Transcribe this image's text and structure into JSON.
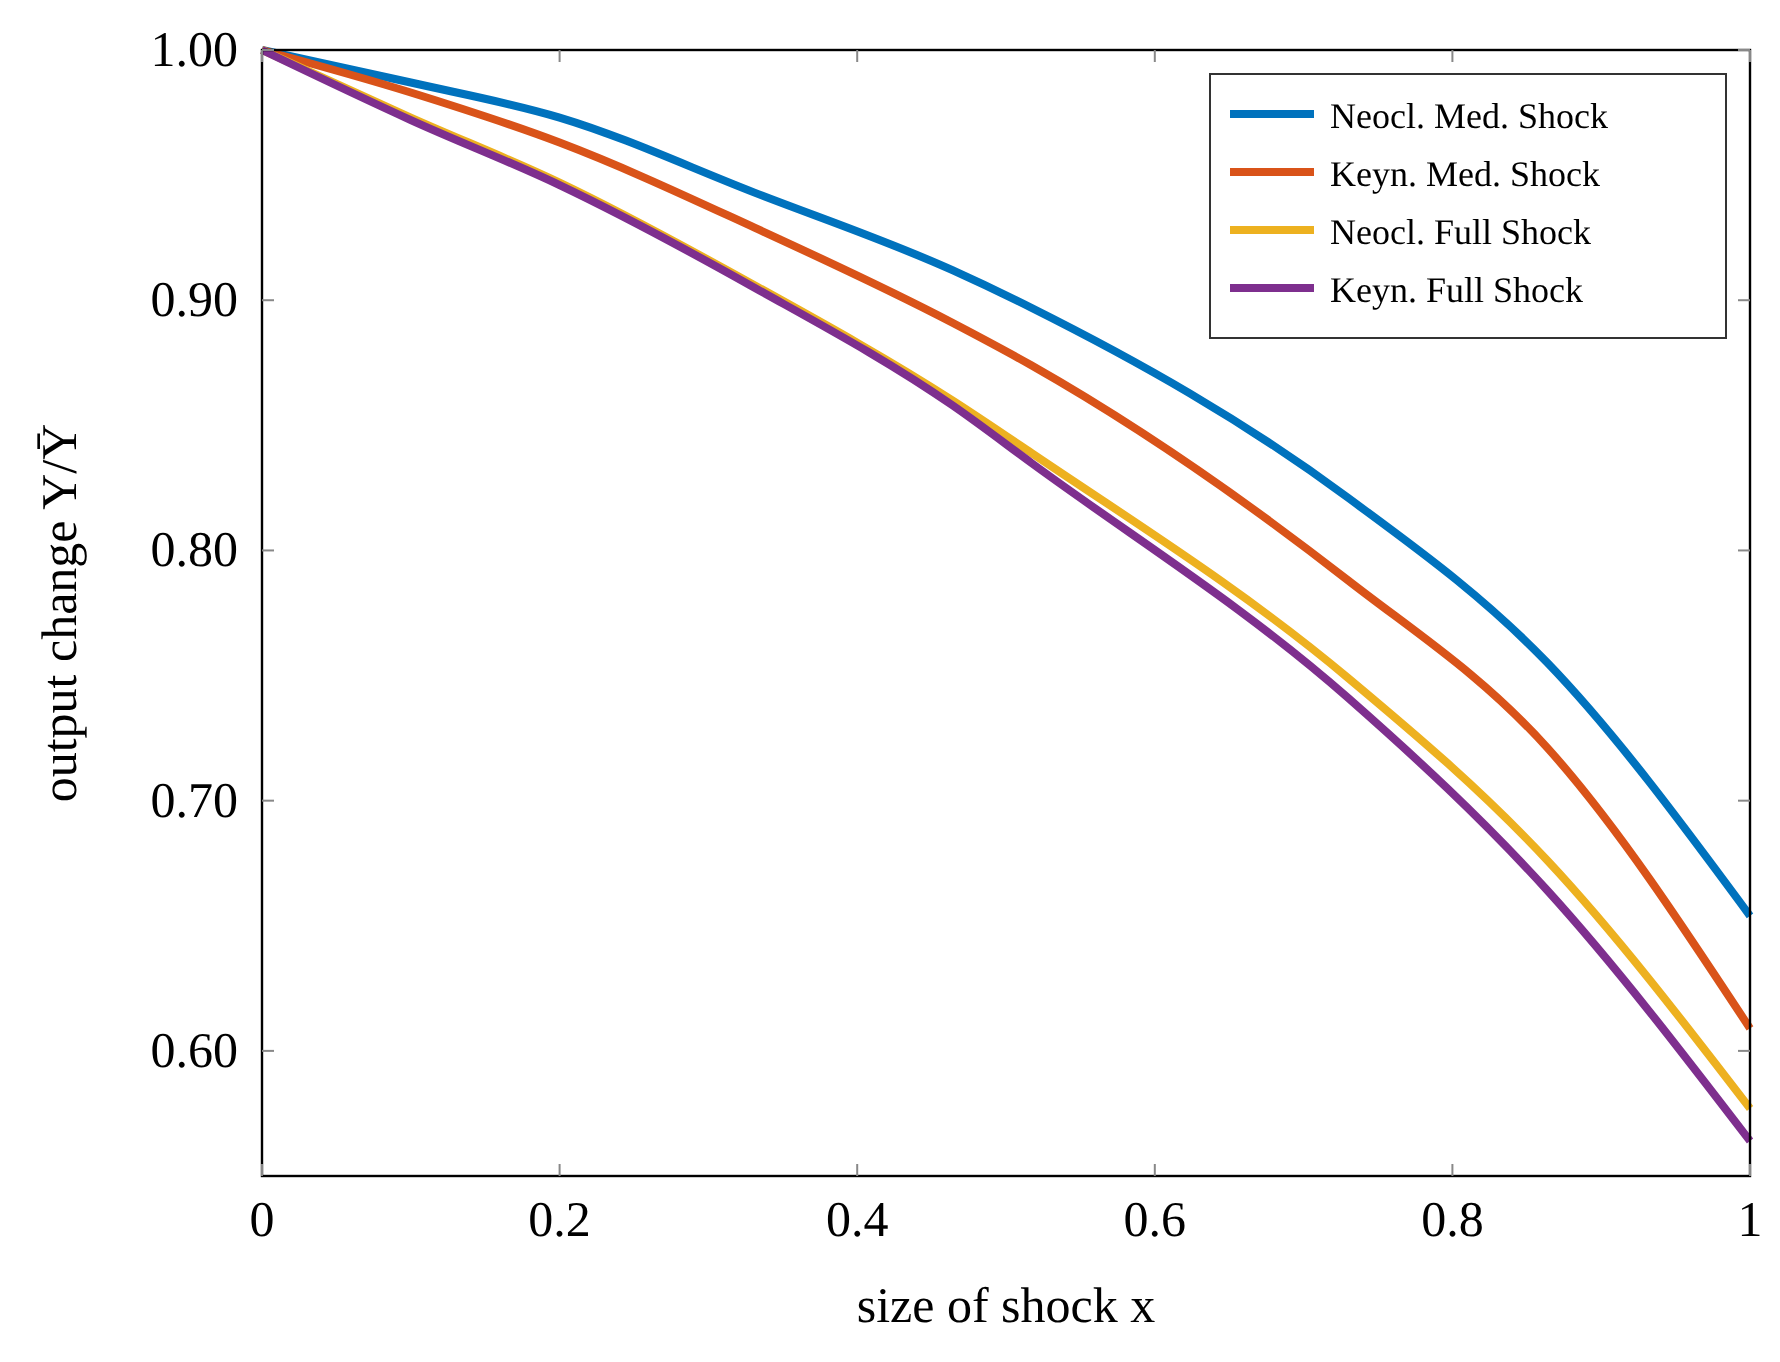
{
  "chart_data": {
    "type": "line",
    "xlabel": "size of shock x",
    "ylabel": "output change Y/Ȳ",
    "xlim": [
      0,
      1
    ],
    "ylim": [
      0.55,
      1.0
    ],
    "xticks": [
      0,
      0.2,
      0.4,
      0.6,
      0.8,
      1
    ],
    "yticks": [
      {
        "value": 0.6,
        "label": "0.60"
      },
      {
        "value": 0.7,
        "label": "0.70"
      },
      {
        "value": 0.8,
        "label": "0.80"
      },
      {
        "value": 0.9,
        "label": "0.90"
      },
      {
        "value": 1.0,
        "label": "1.00"
      }
    ],
    "x": [
      0,
      0.1,
      0.2,
      0.331,
      0.464,
      0.517,
      0.73,
      0.864,
      1
    ],
    "grid": false,
    "legend": "top right",
    "marker": "none",
    "line_style": "solid",
    "series": [
      {
        "name": "Neocl. Med. Shock",
        "color": "#0072bd",
        "values": [
          1.0,
          0.987,
          0.973,
          0.943,
          0.912,
          0.897,
          0.821,
          0.755,
          0.654
        ]
      },
      {
        "name": "Keyn. Med. Shock",
        "color": "#d95319",
        "values": [
          1.0,
          0.983,
          0.963,
          0.929,
          0.891,
          0.874,
          0.788,
          0.721,
          0.609
        ]
      },
      {
        "name": "Neocl. Full Shock",
        "color": "#edb120",
        "values": [
          1.0,
          0.973,
          0.947,
          0.906,
          0.86,
          0.839,
          0.749,
          0.676,
          0.577
        ]
      },
      {
        "name": "Keyn. Full Shock",
        "color": "#7e2f8e",
        "values": [
          1.0,
          0.972,
          0.946,
          0.905,
          0.858,
          0.835,
          0.741,
          0.664,
          0.564
        ]
      }
    ]
  }
}
